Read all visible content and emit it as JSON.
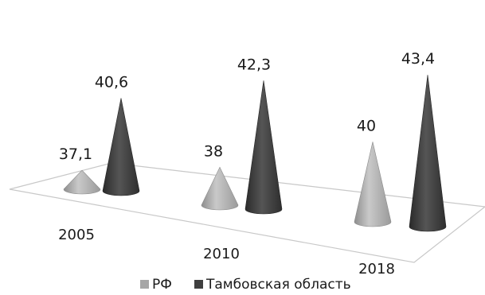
{
  "chart_data": {
    "type": "bar",
    "shape": "cone",
    "view": "3d",
    "categories": [
      "2005",
      "2010",
      "2018"
    ],
    "series": [
      {
        "name": "РФ",
        "values": [
          37.1,
          38,
          40
        ],
        "labels": [
          "37,1",
          "38",
          "40"
        ],
        "color": "#a6a6a6"
      },
      {
        "name": "Тамбовская область",
        "values": [
          40.6,
          42.3,
          43.4
        ],
        "labels": [
          "40,6",
          "42,3",
          "43,4"
        ],
        "color": "#3f3f3f"
      }
    ],
    "legend": "bottom",
    "grid": false
  }
}
